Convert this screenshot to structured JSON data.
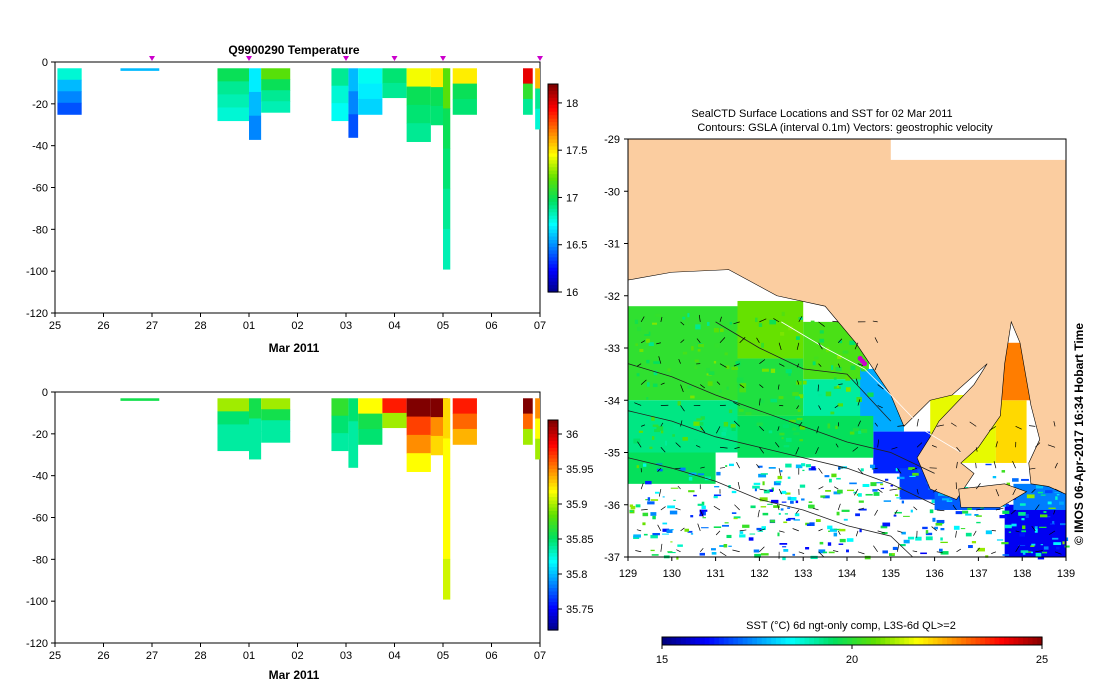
{
  "chart_data": [
    {
      "type": "heatmap",
      "title": "Q9900290  Temperature",
      "xlabel": "Mar 2011",
      "x_ticks": [
        "25",
        "26",
        "27",
        "28",
        "01",
        "02",
        "03",
        "04",
        "05",
        "06",
        "07"
      ],
      "y_ticks": [
        "0",
        "-20",
        "-40",
        "-60",
        "-80",
        "-100",
        "-120"
      ],
      "ylim": [
        -120,
        0
      ],
      "profile_markers_day": [
        27,
        29,
        31,
        32,
        33,
        35
      ],
      "colorbar": {
        "ticks": [
          "18",
          "17.5",
          "17",
          "16.5",
          "16"
        ],
        "range": [
          16,
          18.2
        ]
      },
      "profiles": [
        {
          "day": 0.05,
          "w": 0.5,
          "depth": 25,
          "v": [
            16.8,
            16.6,
            16.5,
            16.4
          ]
        },
        {
          "day": 1.35,
          "w": 0.8,
          "depth": 4,
          "v": [
            16.6
          ]
        },
        {
          "day": 3.35,
          "w": 0.65,
          "depth": 28,
          "v": [
            17.0,
            16.9,
            16.85,
            16.8
          ]
        },
        {
          "day": 4.0,
          "w": 0.25,
          "depth": 37,
          "v": [
            16.7,
            16.6,
            16.5
          ]
        },
        {
          "day": 4.25,
          "w": 0.6,
          "depth": 24,
          "v": [
            17.2,
            17.0,
            16.9,
            16.85
          ]
        },
        {
          "day": 5.7,
          "w": 0.35,
          "depth": 28,
          "v": [
            16.9,
            16.8,
            16.75
          ]
        },
        {
          "day": 6.05,
          "w": 0.2,
          "depth": 36,
          "v": [
            16.6,
            16.5,
            16.4
          ]
        },
        {
          "day": 6.25,
          "w": 0.5,
          "depth": 25,
          "v": [
            16.75,
            16.7,
            16.65
          ]
        },
        {
          "day": 6.75,
          "w": 0.5,
          "depth": 17,
          "v": [
            16.95,
            16.9
          ]
        },
        {
          "day": 7.25,
          "w": 0.5,
          "depth": 38,
          "v": [
            17.45,
            17.0,
            16.95,
            16.9
          ]
        },
        {
          "day": 7.75,
          "w": 0.35,
          "depth": 30,
          "v": [
            17.5,
            17.0,
            16.95
          ]
        },
        {
          "day": 8.0,
          "w": 0.15,
          "depth": 99,
          "v": [
            17.2,
            17.0,
            16.95,
            16.9,
            16.85
          ]
        },
        {
          "day": 8.2,
          "w": 0.5,
          "depth": 25,
          "v": [
            17.5,
            17.0,
            16.95
          ]
        },
        {
          "day": 9.65,
          "w": 0.2,
          "depth": 25,
          "v": [
            18.0,
            17.1,
            16.9
          ]
        },
        {
          "day": 9.9,
          "w": 0.1,
          "depth": 32,
          "v": [
            17.6,
            16.9,
            16.8
          ]
        }
      ]
    },
    {
      "type": "heatmap",
      "title": "",
      "xlabel": "Mar 2011",
      "x_ticks": [
        "25",
        "26",
        "27",
        "28",
        "01",
        "02",
        "03",
        "04",
        "05",
        "06",
        "07"
      ],
      "y_ticks": [
        "0",
        "-20",
        "-40",
        "-60",
        "-80",
        "-100",
        "-120"
      ],
      "ylim": [
        -120,
        0
      ],
      "colorbar": {
        "ticks": [
          "36",
          "35.95",
          "35.9",
          "35.85",
          "35.8",
          "35.75"
        ],
        "range": [
          35.72,
          36.02
        ]
      },
      "profiles": [
        {
          "day": 1.35,
          "w": 0.8,
          "depth": 4,
          "v": [
            35.86
          ]
        },
        {
          "day": 3.35,
          "w": 0.65,
          "depth": 28,
          "v": [
            35.9,
            35.85,
            35.84,
            35.84
          ]
        },
        {
          "day": 4.0,
          "w": 0.25,
          "depth": 32,
          "v": [
            35.86,
            35.84,
            35.84
          ]
        },
        {
          "day": 4.25,
          "w": 0.6,
          "depth": 24,
          "v": [
            35.9,
            35.86,
            35.84,
            35.84
          ]
        },
        {
          "day": 5.7,
          "w": 0.35,
          "depth": 28,
          "v": [
            35.87,
            35.85,
            35.84
          ]
        },
        {
          "day": 6.05,
          "w": 0.2,
          "depth": 36,
          "v": [
            35.85,
            35.84,
            35.84
          ]
        },
        {
          "day": 6.25,
          "w": 0.5,
          "depth": 25,
          "v": [
            35.92,
            35.86,
            35.85
          ]
        },
        {
          "day": 6.75,
          "w": 0.5,
          "depth": 17,
          "v": [
            35.98,
            35.9
          ]
        },
        {
          "day": 7.25,
          "w": 0.5,
          "depth": 38,
          "v": [
            36.02,
            35.97,
            35.95,
            35.92
          ]
        },
        {
          "day": 7.75,
          "w": 0.35,
          "depth": 30,
          "v": [
            36.02,
            35.95,
            35.93
          ]
        },
        {
          "day": 8.0,
          "w": 0.15,
          "depth": 99,
          "v": [
            35.93,
            35.92,
            35.92,
            35.92,
            35.91
          ]
        },
        {
          "day": 8.2,
          "w": 0.5,
          "depth": 25,
          "v": [
            35.98,
            35.96,
            35.94
          ]
        },
        {
          "day": 9.65,
          "w": 0.2,
          "depth": 25,
          "v": [
            36.02,
            35.96,
            35.9
          ]
        },
        {
          "day": 9.9,
          "w": 0.1,
          "depth": 32,
          "v": [
            35.95,
            35.92,
            35.9
          ]
        }
      ]
    },
    {
      "type": "heatmap",
      "title_line1": "SealCTD Surface Locations and SST for 02 Mar 2011",
      "title_line2": "Contours: GSLA (interval 0.1m) Vectors: geostrophic velocity",
      "x_ticks": [
        "129",
        "130",
        "131",
        "132",
        "133",
        "134",
        "135",
        "136",
        "137",
        "138",
        "139"
      ],
      "y_ticks": [
        "-29",
        "-30",
        "-31",
        "-32",
        "-33",
        "-34",
        "-35",
        "-36",
        "-37"
      ],
      "xlim": [
        129,
        139
      ],
      "ylim": [
        -37,
        -29
      ],
      "colorbar_label": "SST (°C) 6d ngt-only comp, L3S-6d QL>=2",
      "colorbar_ticks": [
        "15",
        "20",
        "25"
      ],
      "colorbar_range": [
        15,
        25
      ],
      "credit": "© IMOS 06-Apr-2017 16:34 Hobart Time"
    }
  ],
  "colors": {
    "land": "#fbcda0",
    "ramp": [
      "#000080",
      "#0000ff",
      "#0080ff",
      "#00ffff",
      "#00e060",
      "#60e000",
      "#ffff00",
      "#ff8000",
      "#ff0000",
      "#800000"
    ],
    "marker": "#cc00cc"
  }
}
